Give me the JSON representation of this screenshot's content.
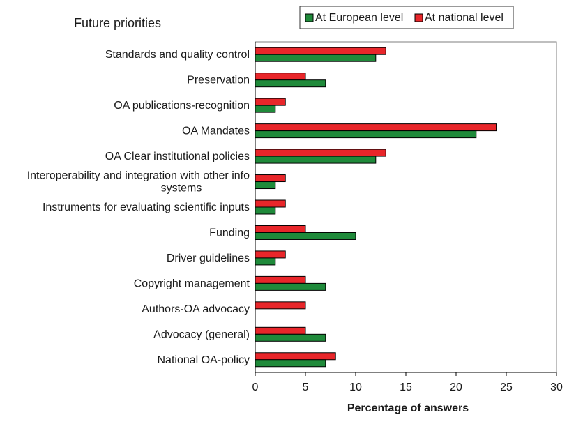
{
  "chart_data": {
    "type": "bar",
    "orientation": "horizontal",
    "title": "Future priorities",
    "xlabel": "Percentage of answers",
    "ylabel": "",
    "xlim": [
      0,
      30
    ],
    "xticks": [
      0,
      5,
      10,
      15,
      20,
      25,
      30
    ],
    "grid": false,
    "legend_position": "top-right",
    "categories": [
      "Standards and quality control",
      "Preservation",
      "OA publications-recognition",
      "OA Mandates",
      "OA Clear institutional policies",
      "Interoperability and integration with other info systems",
      "Instruments for evaluating scientific inputs",
      "Funding",
      "Driver guidelines",
      "Copyright management",
      "Authors-OA advocacy",
      "Advocacy (general)",
      "National OA-policy"
    ],
    "category_lines": [
      [
        "Standards and quality control"
      ],
      [
        "Preservation"
      ],
      [
        "OA publications-recognition"
      ],
      [
        "OA Mandates"
      ],
      [
        "OA Clear institutional policies"
      ],
      [
        "Interoperability and integration with other info",
        "systems"
      ],
      [
        "Instruments for evaluating scientific inputs"
      ],
      [
        "Funding"
      ],
      [
        "Driver guidelines"
      ],
      [
        "Copyright management"
      ],
      [
        "Authors-OA advocacy"
      ],
      [
        "Advocacy (general)"
      ],
      [
        "National OA-policy"
      ]
    ],
    "series": [
      {
        "name": "At European level",
        "color": "#1f8a3a",
        "values": [
          12,
          7,
          2,
          22,
          12,
          2,
          2,
          10,
          2,
          7,
          0,
          7,
          7
        ]
      },
      {
        "name": "At national level",
        "color": "#e8262a",
        "values": [
          13,
          5,
          3,
          24,
          13,
          3,
          3,
          5,
          3,
          5,
          5,
          5,
          8
        ]
      }
    ]
  }
}
